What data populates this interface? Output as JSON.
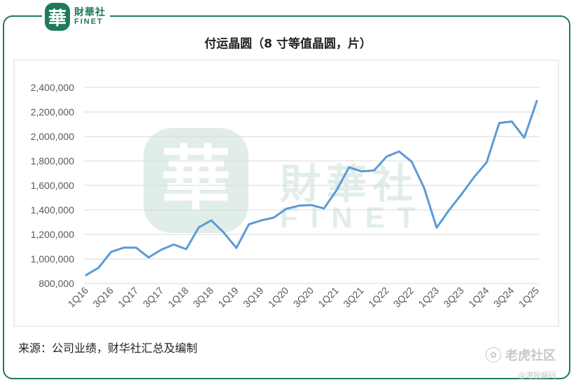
{
  "brand": {
    "badge": "華",
    "name_cn": "財華社",
    "name_en": "FINET"
  },
  "watermark": {
    "badge": "華",
    "name_cn": "財華社",
    "name_en": "FINET"
  },
  "source_text": "来源：公司业绩，财华社汇总及编制",
  "corner_watermark": {
    "icon": "paw-icon",
    "text": "老虎社区",
    "sub": "@港股解码"
  },
  "colors": {
    "line": "#5b9bd5",
    "brand": "#1f7a5a",
    "grid": "#d9d9d9"
  },
  "chart_data": {
    "type": "line",
    "title": "付运晶圆（8 寸等值晶圆，片）",
    "xlabel": "",
    "ylabel": "",
    "ylim": [
      800000,
      2400000
    ],
    "yticks": [
      800000,
      1000000,
      1200000,
      1400000,
      1600000,
      1800000,
      2000000,
      2200000,
      2400000
    ],
    "ytick_labels": [
      "800,000",
      "1,000,000",
      "1,200,000",
      "1,400,000",
      "1,600,000",
      "1,800,000",
      "2,000,000",
      "2,200,000",
      "2,400,000"
    ],
    "grid": true,
    "categories": [
      "1Q16",
      "2Q16",
      "3Q16",
      "4Q16",
      "1Q17",
      "2Q17",
      "3Q17",
      "4Q17",
      "1Q18",
      "2Q18",
      "3Q18",
      "4Q18",
      "1Q19",
      "2Q19",
      "3Q19",
      "4Q19",
      "1Q20",
      "2Q20",
      "3Q20",
      "4Q20",
      "1Q21",
      "2Q21",
      "3Q21",
      "4Q21",
      "1Q22",
      "2Q22",
      "3Q22",
      "4Q22",
      "1Q23",
      "2Q23",
      "3Q23",
      "4Q23",
      "1Q24",
      "2Q24",
      "3Q24",
      "4Q24",
      "1Q25"
    ],
    "xtick_labels": [
      "1Q16",
      "3Q16",
      "1Q17",
      "3Q17",
      "1Q18",
      "3Q18",
      "1Q19",
      "3Q19",
      "1Q20",
      "3Q20",
      "1Q21",
      "3Q21",
      "1Q22",
      "3Q22",
      "1Q23",
      "3Q23",
      "1Q24",
      "3Q24",
      "1Q25"
    ],
    "series": [
      {
        "values": [
          868000,
          928000,
          1058000,
          1092000,
          1092000,
          1012000,
          1075000,
          1118000,
          1080000,
          1258000,
          1315000,
          1215000,
          1090000,
          1282000,
          1315000,
          1338000,
          1410000,
          1435000,
          1440000,
          1412000,
          1560000,
          1748000,
          1715000,
          1722000,
          1835000,
          1878000,
          1795000,
          1580000,
          1255000,
          1400000,
          1530000,
          1670000,
          1790000,
          2110000,
          2122000,
          1990000,
          2290000
        ]
      }
    ]
  }
}
